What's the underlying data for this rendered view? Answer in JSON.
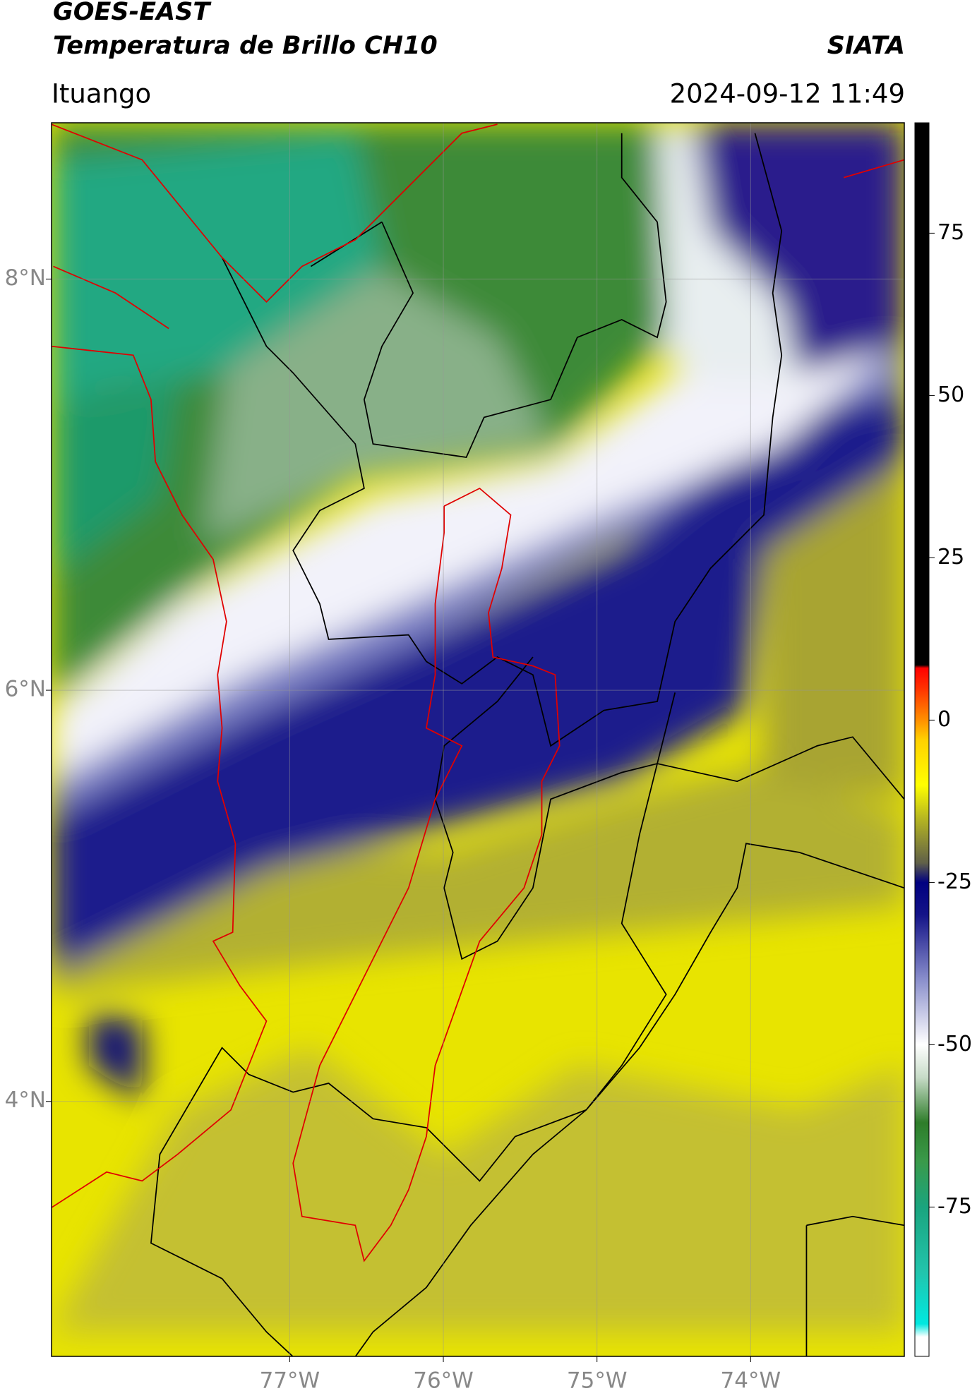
{
  "chart_data": {
    "type": "map",
    "title": "GOES-EAST",
    "subtitle": "Temperatura de Brillo CH10",
    "source": "SIATA",
    "location": "Ituango",
    "datetime": "2024-09-12 11:49",
    "xlim": [
      -78.55,
      -73.0
    ],
    "ylim": [
      2.76,
      8.76
    ],
    "xticks": [
      {
        "value": -77,
        "label": "77°W"
      },
      {
        "value": -76,
        "label": "76°W"
      },
      {
        "value": -75,
        "label": "75°W"
      },
      {
        "value": -74,
        "label": "74°W"
      }
    ],
    "yticks": [
      {
        "value": 8,
        "label": "8°N"
      },
      {
        "value": 6,
        "label": "6°N"
      },
      {
        "value": 4,
        "label": "4°N"
      }
    ],
    "grid": true,
    "clim": [
      -98,
      92
    ],
    "cticks": [
      -75,
      -50,
      -25,
      0,
      25,
      50,
      75
    ],
    "colormap": [
      {
        "value": -98,
        "color": "#ffffff"
      },
      {
        "value": -95,
        "color": "#ffffff"
      },
      {
        "value": -93,
        "color": "#00e8e0"
      },
      {
        "value": -85,
        "color": "#22c4ac"
      },
      {
        "value": -75,
        "color": "#1aa47e"
      },
      {
        "value": -68,
        "color": "#3a9a4a"
      },
      {
        "value": -62,
        "color": "#2e7d2a"
      },
      {
        "value": -55,
        "color": "#c8dcc8"
      },
      {
        "value": -50,
        "color": "#ffffff"
      },
      {
        "value": -40,
        "color": "#8a8fcc"
      },
      {
        "value": -30,
        "color": "#141488"
      },
      {
        "value": -25,
        "color": "#000080"
      },
      {
        "value": -22,
        "color": "#606048"
      },
      {
        "value": -15,
        "color": "#b8b820"
      },
      {
        "value": -10,
        "color": "#ffff00"
      },
      {
        "value": -3,
        "color": "#ffd000"
      },
      {
        "value": 0,
        "color": "#ff9000"
      },
      {
        "value": 5,
        "color": "#ff3000"
      },
      {
        "value": 8,
        "color": "#ff0000"
      },
      {
        "value": 8.5,
        "color": "#000000"
      },
      {
        "value": 92,
        "color": "#000000"
      }
    ]
  }
}
